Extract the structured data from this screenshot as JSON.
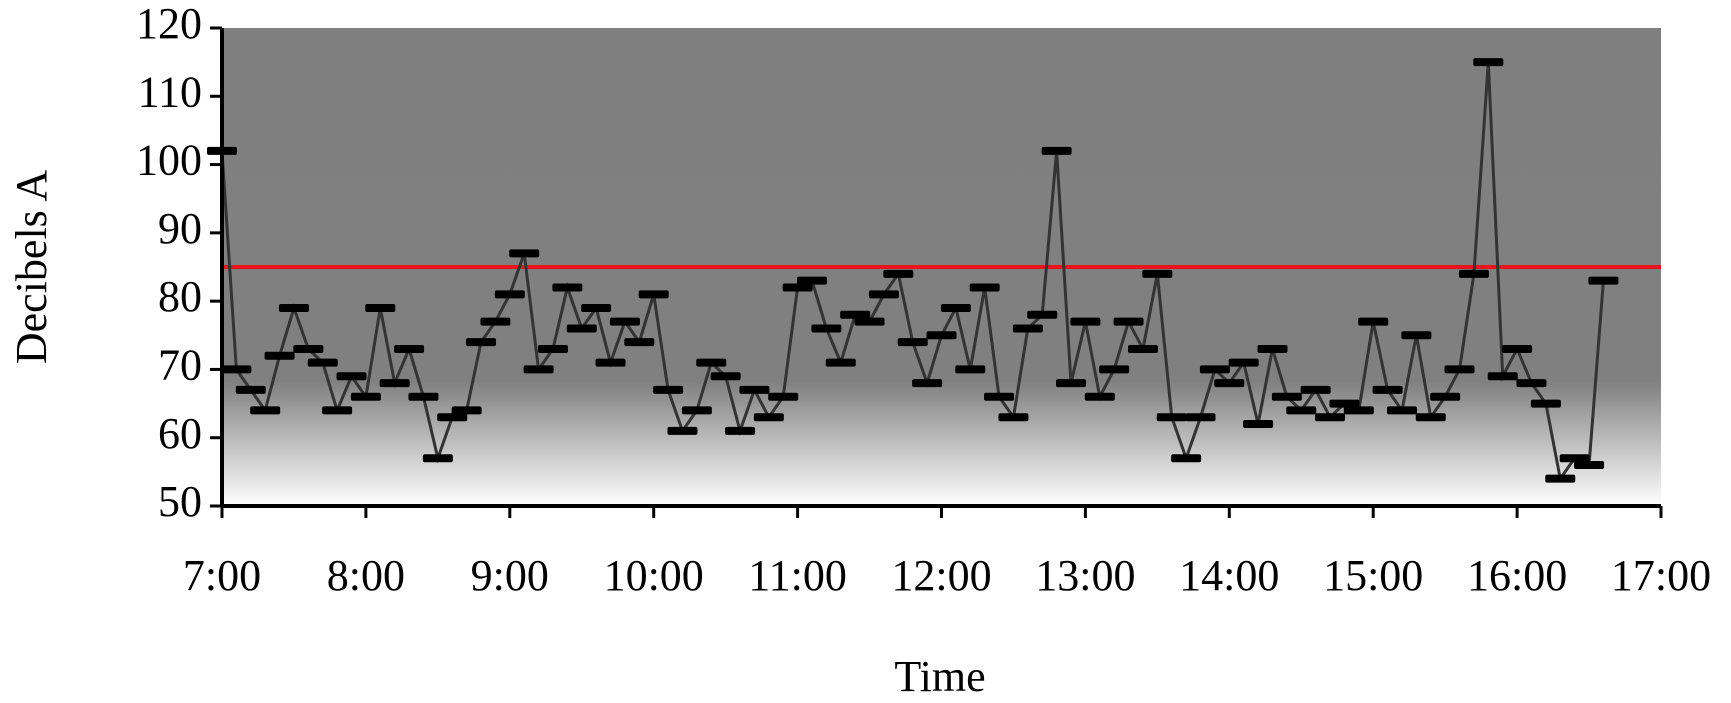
{
  "chart_data": {
    "type": "line",
    "xlabel": "Time",
    "ylabel": "Decibels A",
    "x": [
      7,
      7.1,
      7.2,
      7.3,
      7.4,
      7.5,
      7.6,
      7.7,
      7.8,
      7.9,
      8,
      8.1,
      8.2,
      8.3,
      8.4,
      8.5,
      8.6,
      8.7,
      8.8,
      8.9,
      9,
      9.1,
      9.2,
      9.3,
      9.4,
      9.5,
      9.6,
      9.7,
      9.8,
      9.9,
      10,
      10.1,
      10.2,
      10.3,
      10.4,
      10.5,
      10.6,
      10.7,
      10.8,
      10.9,
      11,
      11.1,
      11.2,
      11.3,
      11.4,
      11.5,
      11.6,
      11.7,
      11.8,
      11.9,
      12,
      12.1,
      12.2,
      12.3,
      12.4,
      12.5,
      12.6,
      12.7,
      12.8,
      12.9,
      13,
      13.1,
      13.2,
      13.3,
      13.4,
      13.5,
      13.6,
      13.7,
      13.8,
      13.9,
      14,
      14.1,
      14.2,
      14.3,
      14.4,
      14.5,
      14.6,
      14.7,
      14.8,
      14.9,
      15,
      15.1,
      15.2,
      15.3,
      15.4,
      15.5,
      15.6,
      15.7,
      15.8,
      15.9,
      16,
      16.1,
      16.2,
      16.3,
      16.4,
      16.5,
      16.6
    ],
    "series": [
      {
        "color": "#333333",
        "marker_color": "#000000",
        "values": [
          102,
          70,
          67,
          64,
          72,
          79,
          73,
          71,
          64,
          69,
          66,
          79,
          68,
          73,
          66,
          57,
          63,
          64,
          74,
          77,
          81,
          87,
          70,
          73,
          82,
          76,
          79,
          71,
          77,
          74,
          81,
          67,
          61,
          64,
          71,
          69,
          61,
          67,
          63,
          66,
          82,
          83,
          76,
          71,
          78,
          77,
          81,
          84,
          74,
          68,
          75,
          79,
          70,
          82,
          66,
          63,
          76,
          78,
          102,
          68,
          77,
          66,
          70,
          77,
          73,
          84,
          63,
          57,
          63,
          70,
          68,
          71,
          62,
          73,
          66,
          64,
          67,
          63,
          65,
          64,
          77,
          67,
          64,
          75,
          63,
          66,
          70,
          84,
          115,
          69,
          73,
          68,
          65,
          54,
          57,
          56,
          83
        ]
      }
    ],
    "reference_line": {
      "value": 85,
      "color": "#e8141a"
    },
    "xlim": [
      7,
      17
    ],
    "xticks": [
      {
        "value": 7,
        "label": "7:00"
      },
      {
        "value": 8,
        "label": "8:00"
      },
      {
        "value": 9,
        "label": "9:00"
      },
      {
        "value": 10,
        "label": "10:00"
      },
      {
        "value": 11,
        "label": "11:00"
      },
      {
        "value": 12,
        "label": "12:00"
      },
      {
        "value": 13,
        "label": "13:00"
      },
      {
        "value": 14,
        "label": "14:00"
      },
      {
        "value": 15,
        "label": "15:00"
      },
      {
        "value": 16,
        "label": "16:00"
      },
      {
        "value": 17,
        "label": "17:00"
      }
    ],
    "ylim": [
      50,
      120
    ],
    "yticks": [
      50,
      60,
      70,
      80,
      90,
      100,
      110,
      120
    ]
  }
}
